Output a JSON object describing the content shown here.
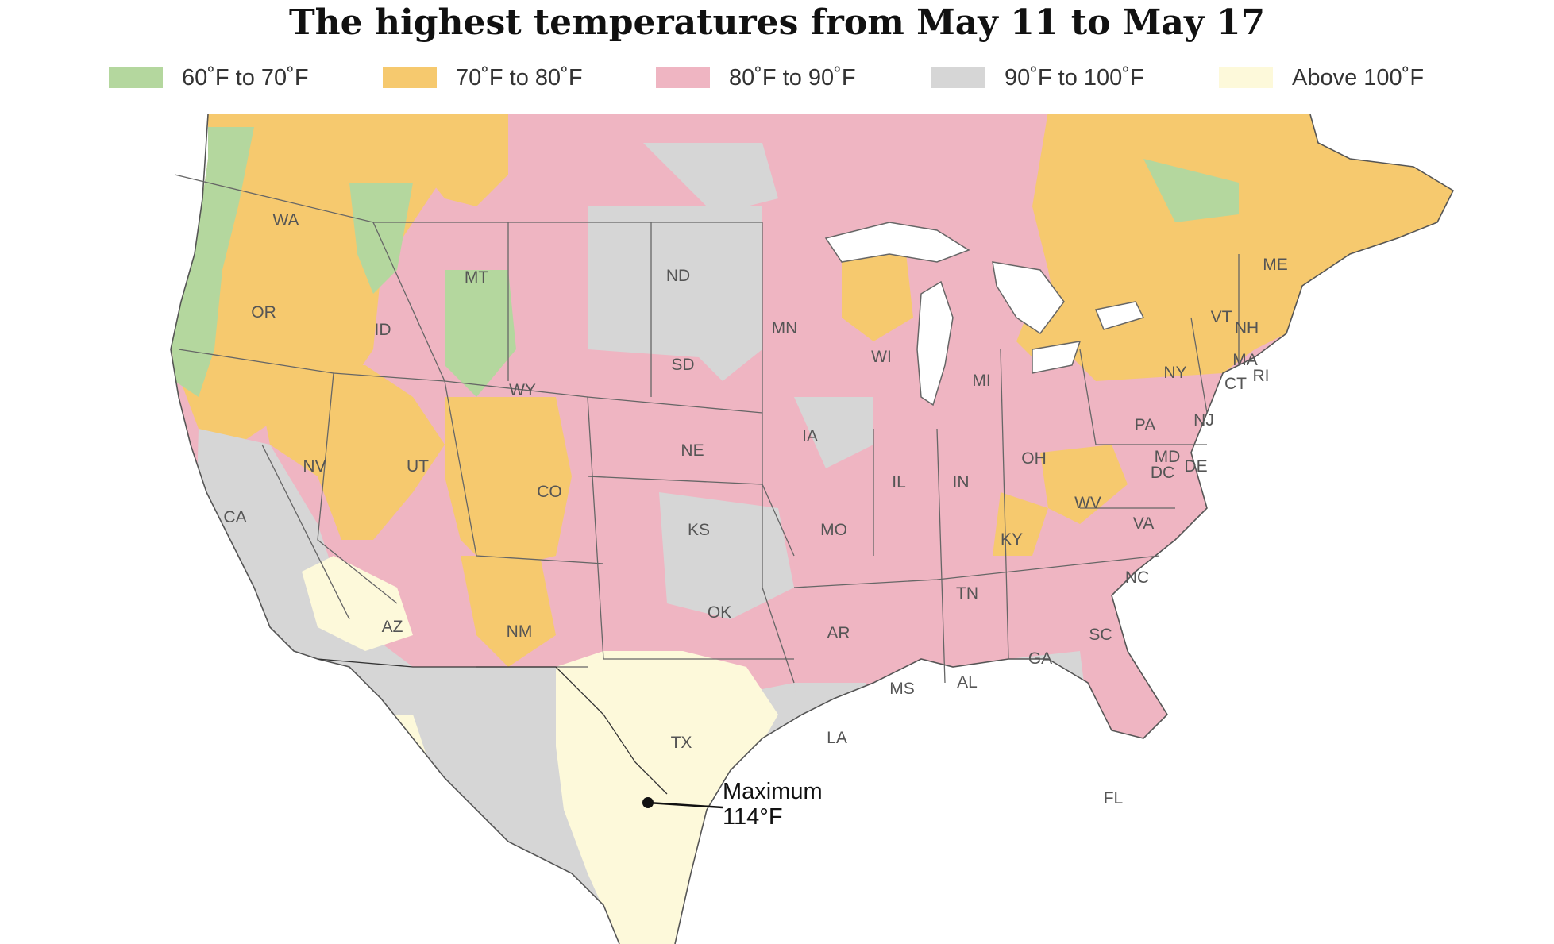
{
  "title": "The highest temperatures from May 11 to May 17",
  "legend": [
    {
      "label": "60˚F to 70˚F",
      "color": "#b4d79e"
    },
    {
      "label": "70˚F to 80˚F",
      "color": "#f6c96e"
    },
    {
      "label": "80˚F to 90˚F",
      "color": "#efb5c2"
    },
    {
      "label": "90˚F to 100˚F",
      "color": "#d6d6d6"
    },
    {
      "label": "Above 100˚F",
      "color": "#fdf9da"
    }
  ],
  "annotation": {
    "line1": "Maximum",
    "line2": "114°F"
  },
  "states": [
    "WA",
    "OR",
    "ID",
    "MT",
    "WY",
    "NV",
    "UT",
    "CO",
    "CA",
    "AZ",
    "NM",
    "ND",
    "SD",
    "NE",
    "KS",
    "OK",
    "TX",
    "MN",
    "IA",
    "MO",
    "AR",
    "LA",
    "WI",
    "IL",
    "MI",
    "IN",
    "OH",
    "KY",
    "TN",
    "MS",
    "AL",
    "GA",
    "SC",
    "NC",
    "VA",
    "WV",
    "PA",
    "NY",
    "VT",
    "NH",
    "ME",
    "MA",
    "CT",
    "RI",
    "NJ",
    "DE",
    "MD",
    "DC",
    "FL"
  ]
}
